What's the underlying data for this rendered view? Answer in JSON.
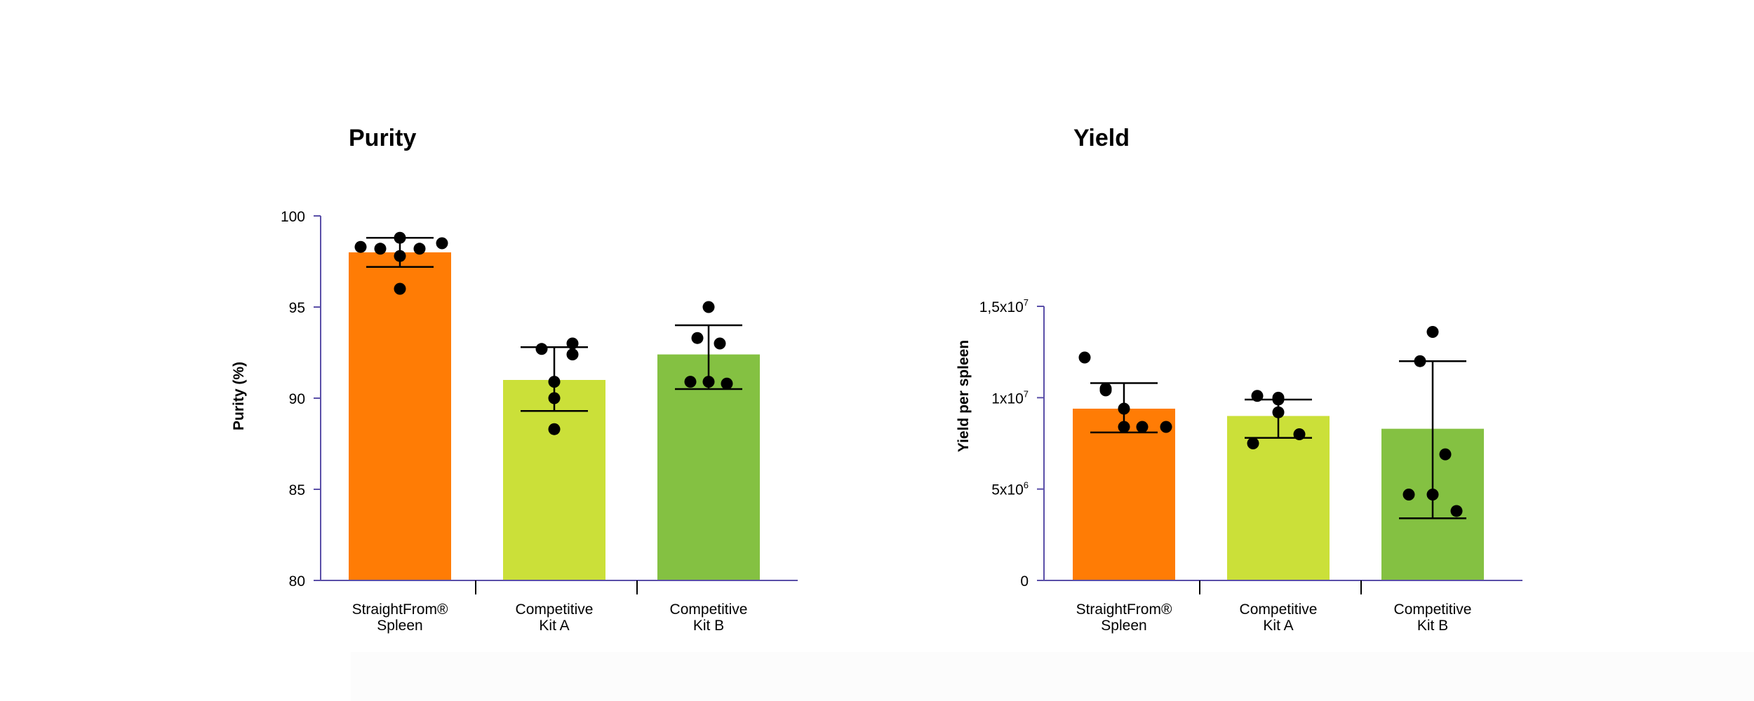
{
  "colors": {
    "axis": "#5a4fa8",
    "bar_straightfrom": "#ff7c05",
    "bar_kit_a": "#cbe039",
    "bar_kit_b": "#84c142",
    "points": "#000000",
    "error_bars": "#000000"
  },
  "chart_data": [
    {
      "type": "bar",
      "title": "Purity",
      "ylabel": "Purity (%)",
      "xlabel": "",
      "ylim": [
        80,
        100
      ],
      "yticks": [
        80,
        85,
        90,
        95,
        100
      ],
      "ytick_labels": [
        "80",
        "85",
        "90",
        "95",
        "100"
      ],
      "categories": [
        {
          "line1": "StraightFrom®",
          "line2": "Spleen"
        },
        {
          "line1": "Competitive",
          "line2": "Kit A"
        },
        {
          "line1": "Competitive",
          "line2": "Kit B"
        }
      ],
      "values": [
        98.0,
        91.0,
        92.4
      ],
      "error_low": [
        97.2,
        89.3,
        90.5
      ],
      "error_high": [
        98.8,
        92.8,
        94.0
      ],
      "points": [
        [
          98.3,
          98.2,
          98.8,
          97.8,
          98.2,
          98.5,
          96.0
        ],
        [
          92.7,
          93.0,
          92.4,
          90.9,
          90.0,
          88.3
        ],
        [
          95.0,
          93.3,
          93.0,
          90.9,
          90.9,
          90.8
        ]
      ],
      "grid": false,
      "legend": "none"
    },
    {
      "type": "bar",
      "title": "Yield",
      "ylabel": "Yield per spleen",
      "xlabel": "",
      "ylim": [
        0,
        15000000
      ],
      "yticks": [
        0,
        5000000,
        10000000,
        15000000
      ],
      "ytick_labels": [
        {
          "base": "0",
          "exp": ""
        },
        {
          "base": "5x10",
          "exp": "6"
        },
        {
          "base": "1x10",
          "exp": "7"
        },
        {
          "base": "1,5x10",
          "exp": "7"
        }
      ],
      "categories": [
        {
          "line1": "StraightFrom®",
          "line2": "Spleen"
        },
        {
          "line1": "Competitive",
          "line2": "Kit A"
        },
        {
          "line1": "Competitive",
          "line2": "Kit B"
        }
      ],
      "values": [
        9400000,
        9000000,
        8300000
      ],
      "error_low": [
        8100000,
        7800000,
        3400000
      ],
      "error_high": [
        10800000,
        9900000,
        12000000
      ],
      "points": [
        [
          12200000,
          10500000,
          10400000,
          9400000,
          8400000,
          8400000,
          8400000
        ],
        [
          10000000,
          10100000,
          9900000,
          9200000,
          8000000,
          7500000
        ],
        [
          13600000,
          12000000,
          6900000,
          4700000,
          4700000,
          3800000
        ]
      ],
      "grid": false,
      "legend": "none"
    }
  ]
}
